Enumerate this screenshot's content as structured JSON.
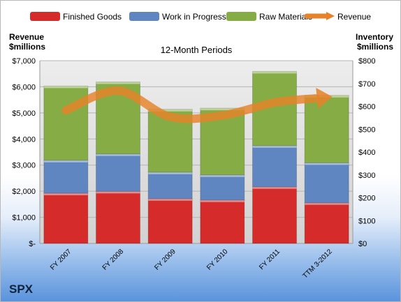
{
  "company": "SPX",
  "chart_data": {
    "type": "bar",
    "stacked": true,
    "title": "12-Month Periods",
    "categories": [
      "FY 2007",
      "FY 2008",
      "FY 2009",
      "FY 2010",
      "FY 2011",
      "TTM 3-2012"
    ],
    "left_axis": {
      "label_line1": "Revenue",
      "label_line2": "$millions",
      "ylim": [
        0,
        7000
      ],
      "ticks": [
        "$-",
        "$1,000",
        "$2,000",
        "$3,000",
        "$4,000",
        "$5,000",
        "$6,000",
        "$7,000"
      ]
    },
    "right_axis": {
      "label_line1": "Inventory",
      "label_line2": "$millions",
      "ylim": [
        0,
        800
      ],
      "ticks": [
        "$0",
        "$100",
        "$200",
        "$300",
        "$400",
        "$500",
        "$600",
        "$700",
        "$800"
      ]
    },
    "bar_series": [
      {
        "name": "Finished Goods",
        "color": "#d52b2b",
        "axis": "right",
        "values": [
          220,
          228,
          196,
          190,
          248,
          178
        ]
      },
      {
        "name": "Work in Progress",
        "color": "#5f86c0",
        "axis": "right",
        "values": [
          144,
          164,
          116,
          110,
          180,
          175
        ]
      },
      {
        "name": "Raw Materials",
        "color": "#86ad45",
        "axis": "right",
        "values": [
          325,
          315,
          275,
          292,
          325,
          295
        ]
      }
    ],
    "line_series": [
      {
        "name": "Revenue",
        "color": "#e6822a",
        "axis": "left",
        "values": [
          5100,
          5850,
          4850,
          4900,
          5400,
          5600
        ]
      }
    ],
    "legend_position": "top",
    "grid": true
  }
}
